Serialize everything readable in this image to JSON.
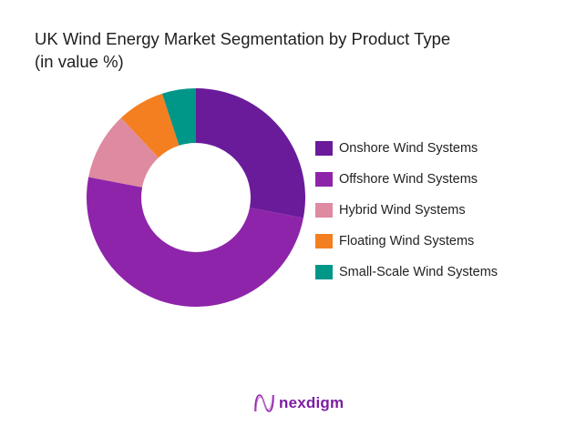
{
  "title": {
    "line1": "UK Wind Energy Market Segmentation by Product Type",
    "line2": "(in value %)"
  },
  "chart_data": {
    "type": "pie",
    "subtype": "donut",
    "title": "UK Wind Energy Market Segmentation by Product Type (in value %)",
    "categories": [
      "Onshore Wind Systems",
      "Offshore Wind Systems",
      "Hybrid Wind Systems",
      "Floating Wind Systems",
      "Small-Scale  Wind Systems"
    ],
    "values": [
      28,
      50,
      10,
      7,
      5
    ],
    "colors": [
      "#6a1b9a",
      "#8e24aa",
      "#de8aa0",
      "#f47f20",
      "#009688"
    ],
    "legend_position": "right",
    "start_angle": "top, clockwise"
  },
  "legend": {
    "items": [
      {
        "label": "Onshore Wind Systems",
        "color": "#6a1b9a"
      },
      {
        "label": "Offshore Wind Systems",
        "color": "#8e24aa"
      },
      {
        "label": "Hybrid Wind Systems",
        "color": "#de8aa0"
      },
      {
        "label": "Floating Wind Systems",
        "color": "#f47f20"
      },
      {
        "label": "Small-Scale  Wind Systems",
        "color": "#009688"
      }
    ]
  },
  "brand": {
    "name": "nexdigm",
    "icon": "nexdigm-logo-icon",
    "color": "#7b1fa2"
  }
}
